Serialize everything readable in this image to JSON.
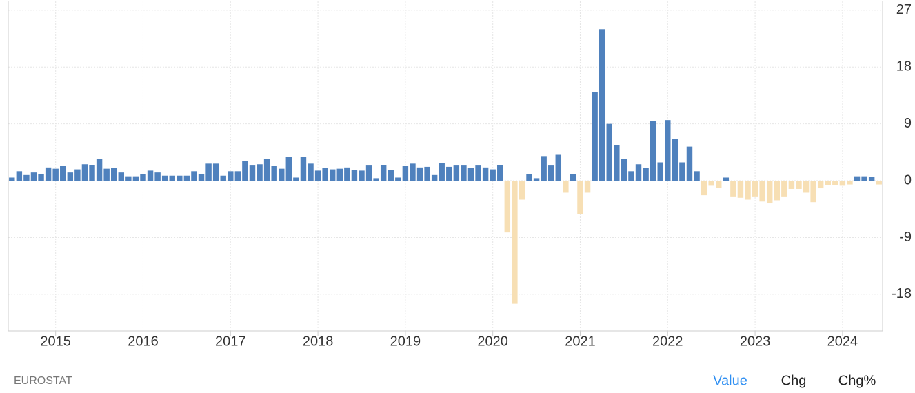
{
  "chart_data": {
    "type": "bar",
    "categories": [
      null,
      null,
      null,
      null,
      null,
      null,
      "2015",
      null,
      null,
      null,
      null,
      null,
      null,
      null,
      null,
      null,
      null,
      null,
      "2016",
      null,
      null,
      null,
      null,
      null,
      null,
      null,
      null,
      null,
      null,
      null,
      "2017",
      null,
      null,
      null,
      null,
      null,
      null,
      null,
      null,
      null,
      null,
      null,
      "2018",
      null,
      null,
      null,
      null,
      null,
      null,
      null,
      null,
      null,
      null,
      null,
      "2019",
      null,
      null,
      null,
      null,
      null,
      null,
      null,
      null,
      null,
      null,
      null,
      "2020",
      null,
      null,
      null,
      null,
      null,
      null,
      null,
      null,
      null,
      null,
      null,
      "2021",
      null,
      null,
      null,
      null,
      null,
      null,
      null,
      null,
      null,
      null,
      null,
      "2022",
      null,
      null,
      null,
      null,
      null,
      null,
      null,
      null,
      null,
      null,
      null,
      "2023",
      null,
      null,
      null,
      null,
      null,
      null,
      null,
      null,
      null,
      null,
      null,
      "2024",
      null,
      null,
      null,
      null,
      null
    ],
    "values": [
      0.5,
      1.5,
      0.9,
      1.3,
      1.1,
      2.1,
      1.9,
      2.3,
      1.3,
      1.8,
      2.6,
      2.5,
      3.5,
      1.9,
      2.0,
      1.3,
      0.7,
      0.7,
      1.0,
      1.6,
      1.3,
      0.8,
      0.8,
      0.8,
      0.8,
      1.5,
      1.1,
      2.7,
      2.7,
      0.8,
      1.5,
      1.5,
      3.1,
      2.4,
      2.6,
      3.4,
      2.3,
      1.9,
      3.8,
      0.5,
      3.8,
      2.7,
      1.6,
      2.0,
      1.8,
      1.9,
      2.1,
      1.7,
      1.6,
      2.4,
      0.4,
      2.5,
      1.7,
      0.5,
      2.3,
      2.7,
      2.1,
      2.2,
      0.9,
      2.8,
      2.2,
      2.4,
      2.4,
      2.0,
      2.4,
      2.1,
      1.8,
      2.5,
      -8.2,
      -19.5,
      -3.0,
      1.0,
      0.4,
      3.9,
      2.4,
      4.1,
      -1.9,
      1.0,
      -5.3,
      -1.9,
      14,
      24,
      9,
      5.6,
      3.5,
      1.5,
      2.6,
      2.0,
      9.4,
      2.9,
      9.6,
      6.6,
      2.9,
      5.4,
      1.5,
      -2.3,
      -0.8,
      -1.1,
      0.5,
      -2.6,
      -2.7,
      -3.0,
      -2.6,
      -3.3,
      -3.6,
      -3.1,
      -2.6,
      -1.3,
      -1.3,
      -1.9,
      -3.4,
      -1.2,
      -0.7,
      -0.7,
      -0.8,
      -0.6,
      0.7,
      0.7,
      0.6,
      -0.6
    ],
    "color": "#4f81bd",
    "negative_color": "#f7dfb4",
    "ylim": [
      -23.8,
      28.4
    ],
    "yticks": [
      -18,
      -9,
      0,
      9,
      18,
      27
    ],
    "grid": true,
    "source": "EUROSTAT",
    "buttons": [
      "Value",
      "Chg",
      "Chg%"
    ]
  }
}
